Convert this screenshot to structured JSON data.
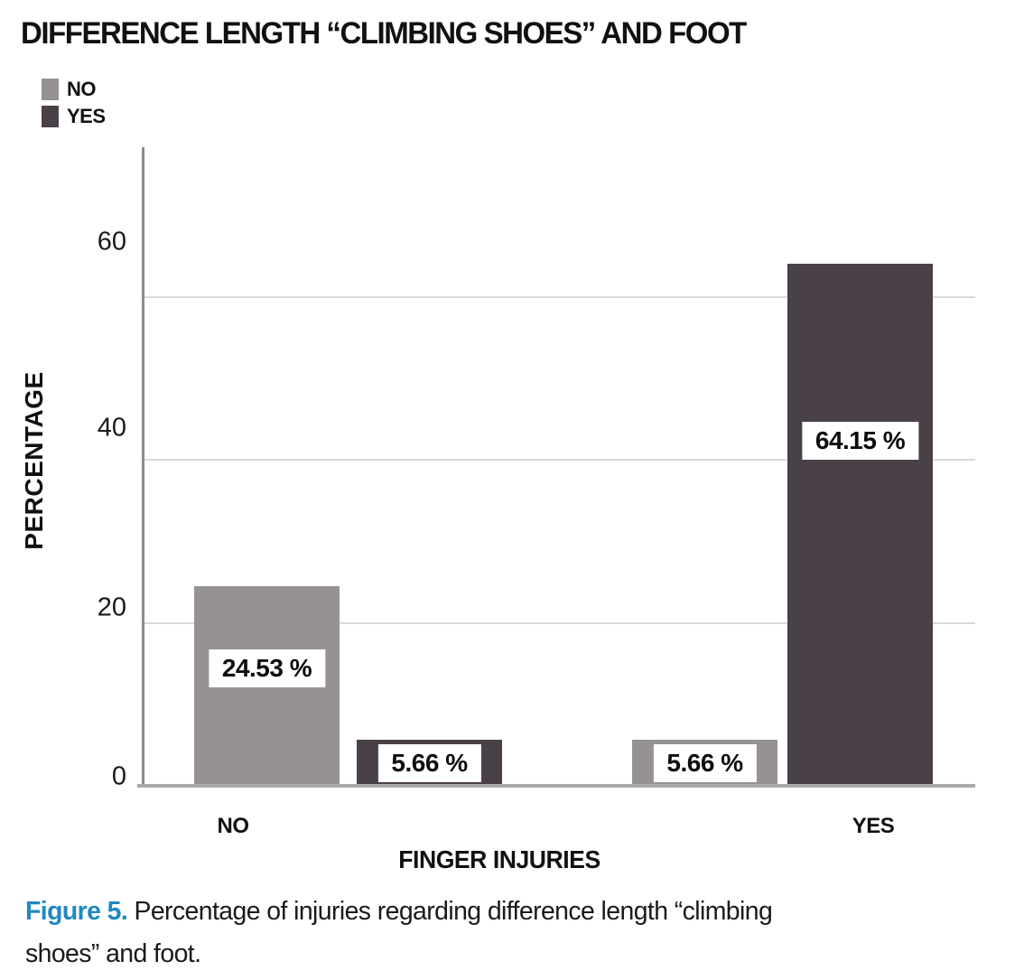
{
  "chart_data": {
    "type": "bar",
    "title": "DIFFERENCE LENGTH “CLIMBING SHOES” AND FOOT",
    "categories": [
      "NO",
      "YES"
    ],
    "series": [
      {
        "name": "NO",
        "color": "#969293",
        "values": [
          24.53,
          5.66
        ],
        "labels": [
          "24.53 %",
          "5.66 %"
        ]
      },
      {
        "name": "YES",
        "color": "#4a4047",
        "values": [
          5.66,
          64.15
        ],
        "labels": [
          "5.66 %",
          "64.15 %"
        ]
      }
    ],
    "xlabel": "FINGER INJURIES",
    "ylabel": "PERCENTAGE",
    "yticks": [
      0,
      20,
      40,
      60
    ],
    "ylim": [
      0,
      78.4
    ],
    "grid": true,
    "legend_position": "top-left"
  },
  "caption": {
    "label": "Figure 5.",
    "line1": " Percentage of injuries regarding difference length “climbing",
    "line2": "shoes” and foot.",
    "label_color": "#2089be",
    "text_color": "#1a1a1a"
  },
  "colors": {
    "gridline": "#d9d9d9",
    "y_axis_line": "#8c8a8b",
    "x_axis_line": "#aaa8a9",
    "bar_no": "#969293",
    "bar_yes": "#4a4047"
  }
}
